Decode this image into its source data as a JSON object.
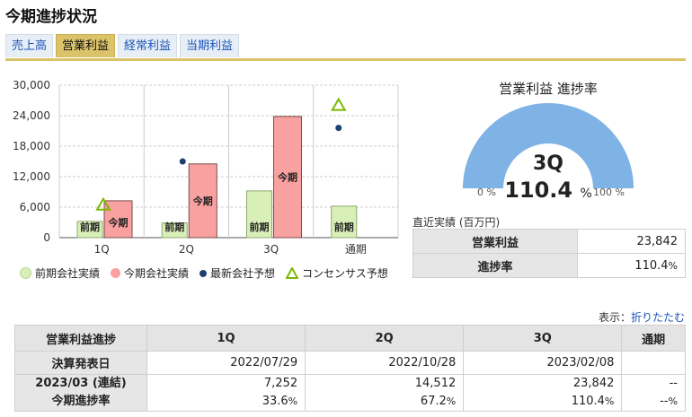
{
  "page_title": "今期進捗状況",
  "tabs": [
    {
      "label": "売上高"
    },
    {
      "label": "営業利益"
    },
    {
      "label": "経常利益"
    },
    {
      "label": "当期利益"
    }
  ],
  "chart_data": {
    "type": "bar",
    "categories": [
      "1Q",
      "2Q",
      "3Q",
      "通期"
    ],
    "yticks": [
      "30,000",
      "24,000",
      "18,000",
      "12,000",
      "6,000",
      "0"
    ],
    "ylim": [
      0,
      30000
    ],
    "series": [
      {
        "name": "前期会社実績",
        "values": [
          3200,
          2900,
          9200,
          6200
        ],
        "label": "前期",
        "color": "#d9efb8"
      },
      {
        "name": "今期会社実績",
        "values": [
          7252,
          14512,
          23842,
          null
        ],
        "label": "今期",
        "color": "#f9a0a0"
      },
      {
        "name": "最新会社予想",
        "values": [
          null,
          15000,
          null,
          21600
        ],
        "color": "#1f3f73"
      },
      {
        "name": "コンセンサス予想",
        "values": [
          6400,
          null,
          null,
          26000
        ],
        "color": "#7ab800"
      }
    ]
  },
  "gauge": {
    "title": "営業利益 進捗率",
    "quarter": "3Q",
    "value": "110.4",
    "unit": "%",
    "fraction": 1.0,
    "min_label": "0 %",
    "max_label": "100 %",
    "fill_color": "#7fb3e6"
  },
  "recent": {
    "caption": "直近実績 (百万円)",
    "rows": [
      {
        "label": "営業利益",
        "value": "23,842",
        "unit": ""
      },
      {
        "label": "進捗率",
        "value": "110.4",
        "unit": "%"
      }
    ]
  },
  "display": {
    "label": "表示：",
    "link": "折りたたむ"
  },
  "progress_table": {
    "headers": [
      "営業利益進捗",
      "1Q",
      "2Q",
      "3Q",
      "通期"
    ],
    "announce": {
      "label": "決算発表日",
      "values": [
        "2022/07/29",
        "2022/10/28",
        "2023/02/08",
        ""
      ]
    },
    "period": {
      "label1": "2023/03 (連結)",
      "label2": "今期進捗率",
      "values": [
        "7,252",
        "14,512",
        "23,842",
        "--"
      ],
      "rates": [
        "33.6",
        "67.2",
        "110.4",
        "--"
      ],
      "rate_unit": "%"
    }
  }
}
